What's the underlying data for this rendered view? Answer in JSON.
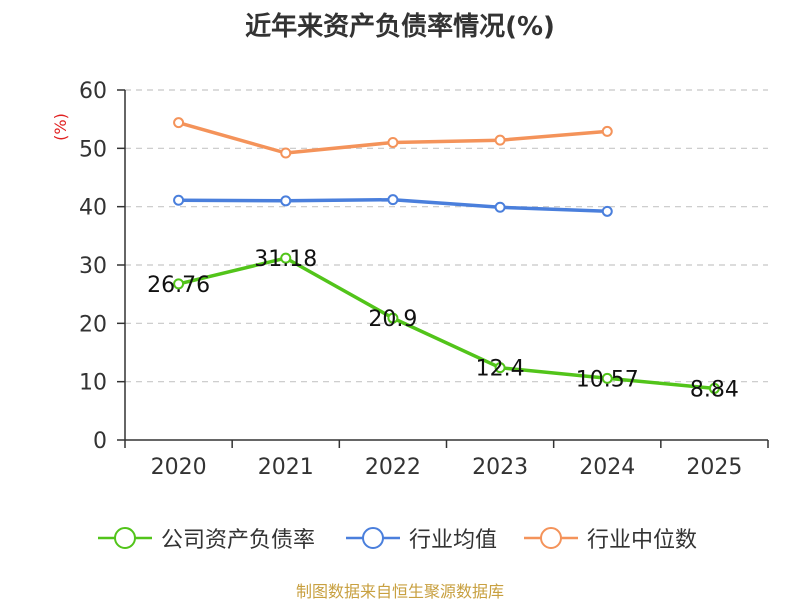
{
  "title": "近年来资产负债率情况(%)",
  "source": "制图数据来自恒生聚源数据库",
  "chart_data": {
    "type": "line",
    "title": "近年来资产负债率情况(%)",
    "ylabel": "(%)",
    "x": [
      "2020",
      "2021",
      "2022",
      "2023",
      "2024",
      "2025"
    ],
    "ylim": [
      0,
      60
    ],
    "yticks": [
      0,
      10,
      20,
      30,
      40,
      50,
      60
    ],
    "grid": true,
    "legend_position": "bottom",
    "series": [
      {
        "name": "公司资产负债率",
        "color": "#52c41a",
        "values": [
          26.76,
          31.18,
          20.9,
          12.4,
          10.57,
          8.84
        ],
        "data_labels": [
          "26.76",
          "31.18",
          "20.9",
          "12.4",
          "10.57",
          "8.84"
        ]
      },
      {
        "name": "行业均值",
        "color": "#4a7fdc",
        "values": [
          41.1,
          41.0,
          41.2,
          39.9,
          39.2,
          null
        ]
      },
      {
        "name": "行业中位数",
        "color": "#f4935a",
        "values": [
          54.4,
          49.2,
          51.0,
          51.4,
          52.9,
          null
        ]
      }
    ]
  }
}
